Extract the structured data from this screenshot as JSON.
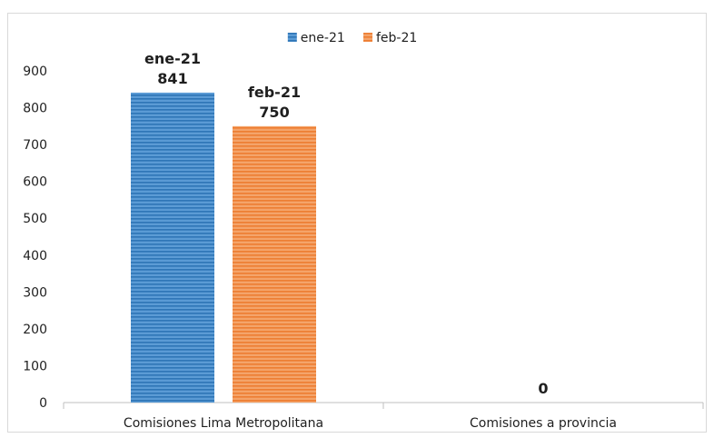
{
  "chart_data": {
    "type": "bar",
    "categories": [
      "Comisiones Lima Metropolitana",
      "Comisiones a provincia"
    ],
    "series": [
      {
        "name": "ene-21",
        "values": [
          841,
          null
        ],
        "color": "#5b9bd5",
        "stripe": "#2e75b6"
      },
      {
        "name": "feb-21",
        "values": [
          750,
          null
        ],
        "color": "#f4a46a",
        "stripe": "#ed7d31"
      }
    ],
    "data_labels": [
      {
        "category": 0,
        "series": 0,
        "lines": [
          "ene-21",
          "841"
        ]
      },
      {
        "category": 0,
        "series": 1,
        "lines": [
          "feb-21",
          "750"
        ]
      },
      {
        "category": 1,
        "series": null,
        "lines": [
          "0"
        ]
      }
    ],
    "ylim": [
      0,
      900
    ],
    "yticks": [
      0,
      100,
      200,
      300,
      400,
      500,
      600,
      700,
      800,
      900
    ],
    "legend_position": "top-center",
    "grid": false
  }
}
